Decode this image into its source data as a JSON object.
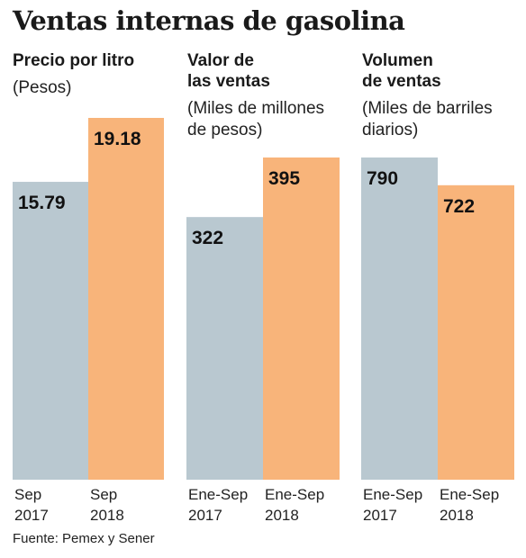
{
  "title": "Ventas internas de gasolina",
  "footer": "Fuente: Pemex y Sener",
  "colors": {
    "bar_2017": "#b9c8d0",
    "bar_2018": "#f8b47a",
    "text": "#1a1a1a"
  },
  "panels": [
    {
      "title": "Precio por litro",
      "unit": "(Pesos)"
    },
    {
      "title": "Valor de\nlas ventas",
      "unit": "(Miles de millones\nde pesos)"
    },
    {
      "title": "Volumen\nde ventas",
      "unit": "(Miles de barriles\ndiarios)"
    }
  ],
  "chart_data": [
    {
      "type": "bar",
      "title": "Precio por litro",
      "ylabel": "(Pesos)",
      "categories": [
        "Sep\n2017",
        "Sep\n2018"
      ],
      "values": [
        15.79,
        19.18
      ],
      "value_labels": [
        "15.79",
        "19.18"
      ],
      "bar_colors": [
        "#b9c8d0",
        "#f8b47a"
      ],
      "grid": false
    },
    {
      "type": "bar",
      "title": "Valor de las ventas",
      "ylabel": "(Miles de millones de pesos)",
      "categories": [
        "Ene-Sep\n2017",
        "Ene-Sep\n2018"
      ],
      "values": [
        322,
        395
      ],
      "value_labels": [
        "322",
        "395"
      ],
      "bar_colors": [
        "#b9c8d0",
        "#f8b47a"
      ],
      "grid": false
    },
    {
      "type": "bar",
      "title": "Volumen de ventas",
      "ylabel": "(Miles de barriles diarios)",
      "categories": [
        "Ene-Sep\n2017",
        "Ene-Sep\n2018"
      ],
      "values": [
        790,
        722
      ],
      "value_labels": [
        "790",
        "722"
      ],
      "bar_colors": [
        "#b9c8d0",
        "#f8b47a"
      ],
      "grid": false
    }
  ]
}
